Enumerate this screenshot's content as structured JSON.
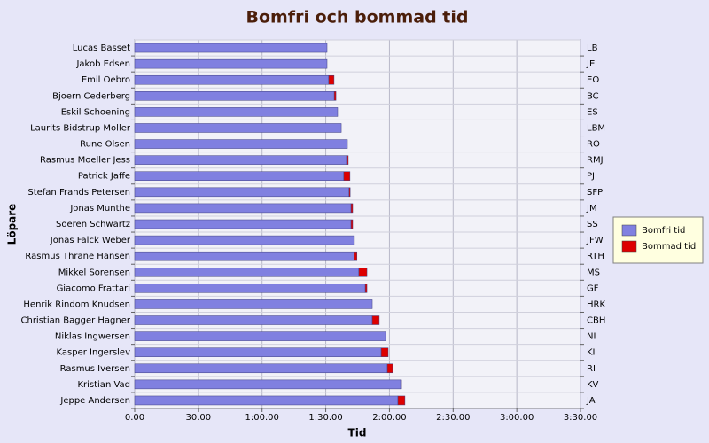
{
  "chart_data": {
    "type": "bar",
    "orientation": "horizontal",
    "stacked": true,
    "title": "Bomfri och bommad tid",
    "x_label": "Tid",
    "y_label": "Löpare",
    "categories": [
      "Lucas Basset",
      "Jakob Edsen",
      "Emil Oebro",
      "Bjoern Cederberg",
      "Eskil Schoening",
      "Laurits Bidstrup Moller",
      "Rune Olsen",
      "Rasmus Moeller Jess",
      "Patrick Jaffe",
      "Stefan Frands Petersen",
      "Jonas Munthe",
      "Soeren Schwartz",
      "Jonas Falck Weber",
      "Rasmus Thrane Hansen",
      "Mikkel Sorensen",
      "Giacomo Frattari",
      "Henrik Rindom Knudsen",
      "Christian Bagger Hagner",
      "Niklas Ingwersen",
      "Kasper Ingerslev",
      "Rasmus Iversen",
      "Kristian Vad",
      "Jeppe Andersen"
    ],
    "y2_categories": [
      "LB",
      "JE",
      "EO",
      "BC",
      "ES",
      "LBM",
      "RO",
      "RMJ",
      "PJ",
      "SFP",
      "JM",
      "SS",
      "JFW",
      "RTH",
      "MS",
      "GF",
      "HRK",
      "CBH",
      "NI",
      "KI",
      "RI",
      "KV",
      "JA"
    ],
    "series": [
      {
        "name": "Bomfri tid",
        "color": "#8080e0",
        "values": [
          90.6,
          90.6,
          91.4,
          94.0,
          95.6,
          97.3,
          100.2,
          99.8,
          98.5,
          101.0,
          101.9,
          101.9,
          103.5,
          103.5,
          105.6,
          108.6,
          111.9,
          111.9,
          118.2,
          116.1,
          119.0,
          125.3,
          124.0
        ]
      },
      {
        "name": "Bommad tid",
        "color": "#dd0000",
        "values": [
          0,
          0,
          2.5,
          0.8,
          0,
          0,
          0,
          0.8,
          2.9,
          0.5,
          0.8,
          0.8,
          0,
          1.2,
          3.8,
          0.8,
          0,
          3.3,
          0,
          3.3,
          2.5,
          0.4,
          3.3
        ]
      }
    ],
    "xlim": [
      0,
      210
    ],
    "xticks": [
      {
        "value": 0,
        "label": "0.00"
      },
      {
        "value": 30,
        "label": "30.00"
      },
      {
        "value": 60,
        "label": "1:00.00"
      },
      {
        "value": 90,
        "label": "1:30.00"
      },
      {
        "value": 120,
        "label": "2:00.00"
      },
      {
        "value": 150,
        "label": "2:30.00"
      },
      {
        "value": 180,
        "label": "3:00.00"
      },
      {
        "value": 210,
        "label": "3:30.00"
      }
    ],
    "grid": true,
    "legend": "right"
  }
}
